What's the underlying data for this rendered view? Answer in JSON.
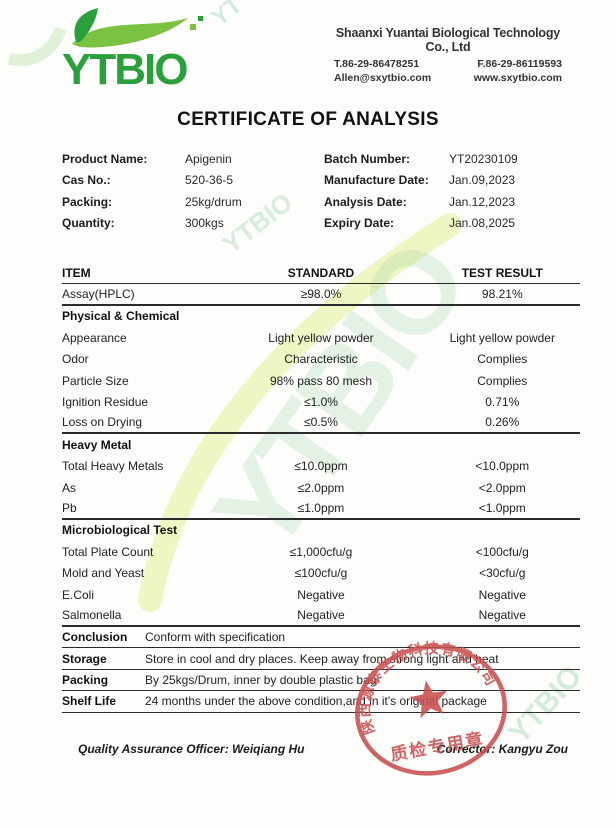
{
  "header": {
    "logo_text": "YTBIO",
    "company_name": "Shaanxi Yuantai Biological Technology Co., Ltd",
    "phone": "T.86-29-86478251",
    "fax": "F.86-29-86119593",
    "email": "Allen@sxytbio.com",
    "website": "www.sxytbio.com"
  },
  "title": "CERTIFICATE OF ANALYSIS",
  "product_info": {
    "left": [
      {
        "label": "Product Name:",
        "value": "Apigenin"
      },
      {
        "label": "Cas No.:",
        "value": "520-36-5"
      },
      {
        "label": "Packing:",
        "value": "25kg/drum"
      },
      {
        "label": "Quantity:",
        "value": "300kgs"
      }
    ],
    "right": [
      {
        "label": "Batch Number:",
        "value": "YT20230109"
      },
      {
        "label": "Manufacture Date:",
        "value": "Jan.09,2023"
      },
      {
        "label": "Analysis Date:",
        "value": "Jan.12,2023"
      },
      {
        "label": "Expiry Date:",
        "value": "Jan.08,2025"
      }
    ]
  },
  "spec_table": {
    "rows": [
      {
        "t": "header",
        "item": "ITEM",
        "standard": "STANDARD",
        "result": "TEST RESULT"
      },
      {
        "t": "row",
        "item": "Assay(HPLC)",
        "standard": "≥98.0%",
        "result": "98.21%",
        "line": "thick"
      },
      {
        "t": "section",
        "item": "Physical & Chemical"
      },
      {
        "t": "row",
        "item": "Appearance",
        "standard": "Light yellow powder",
        "result": "Light yellow powder"
      },
      {
        "t": "row",
        "item": "Odor",
        "standard": "Characteristic",
        "result": "Complies"
      },
      {
        "t": "row",
        "item": "Particle Size",
        "standard": "98% pass 80 mesh",
        "result": "Complies"
      },
      {
        "t": "row",
        "item": "Ignition Residue",
        "standard": "≤1.0%",
        "result": "0.71%"
      },
      {
        "t": "row",
        "item": "Loss on Drying",
        "standard": "≤0.5%",
        "result": "0.26%",
        "line": "thick"
      },
      {
        "t": "section",
        "item": "Heavy Metal"
      },
      {
        "t": "row",
        "item": "Total Heavy Metals",
        "standard": "≤10.0ppm",
        "result": "<10.0ppm"
      },
      {
        "t": "row",
        "item": "As",
        "standard": "≤2.0ppm",
        "result": "<2.0ppm"
      },
      {
        "t": "row",
        "item": "Pb",
        "standard": "≤1.0ppm",
        "result": "<1.0ppm",
        "line": "thick"
      },
      {
        "t": "section",
        "item": "Microbiological Test"
      },
      {
        "t": "row",
        "item": "Total Plate Count",
        "standard": "≤1,000cfu/g",
        "result": "<100cfu/g"
      },
      {
        "t": "row",
        "item": "Mold and Yeast",
        "standard": "≤100cfu/g",
        "result": "<30cfu/g"
      },
      {
        "t": "row",
        "item": "E.Coli",
        "standard": "Negative",
        "result": "Negative"
      },
      {
        "t": "row",
        "item": "Salmonella",
        "standard": "Negative",
        "result": "Negative",
        "line": "thick"
      }
    ]
  },
  "summary_rows": [
    {
      "label": "Conclusion",
      "value": "Conform with specification"
    },
    {
      "label": "Storage",
      "value": "Store in cool and dry places. Keep away from strong light and heat"
    },
    {
      "label": "Packing",
      "value": "By 25kgs/Drum, inner by double plastic bag"
    },
    {
      "label": "Shelf Life",
      "value": "24 months under the above condition,and in it's original package"
    }
  ],
  "signatures": {
    "left": "Quality Assurance Officer: Weiqiang Hu",
    "right": "Corrector: Kangyu Zou"
  },
  "stamp": {
    "ring_text": "陕西源泰生物科技有限公司",
    "bottom_text": "质检专用章",
    "color": "#c85050"
  },
  "watermark_text": "YTBIO",
  "watermark_text_short": "YT",
  "colors": {
    "brand_green": "#2aa03c",
    "leaf_light": "#7cc242",
    "stamp_red": "#c85050"
  }
}
